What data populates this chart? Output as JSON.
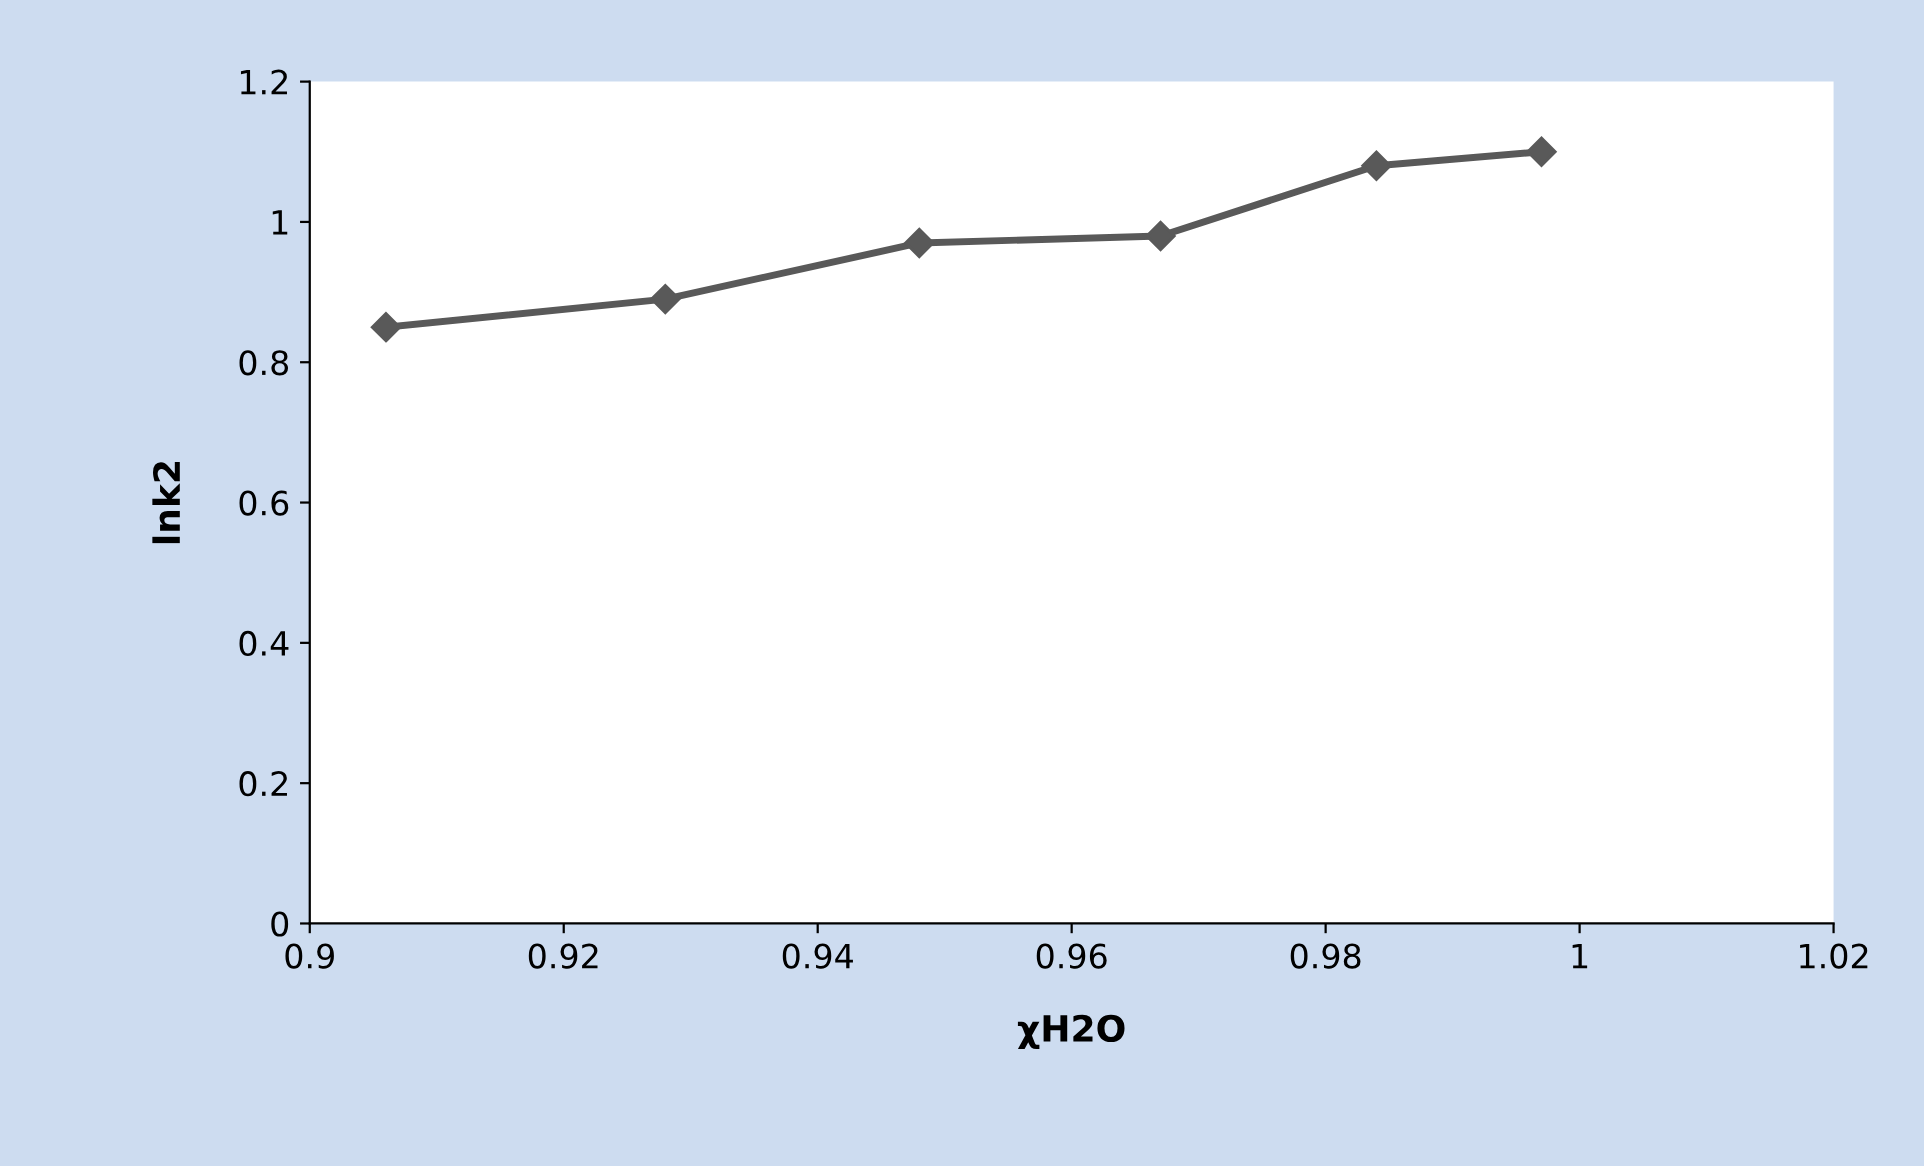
{
  "chart_data": {
    "type": "line",
    "xlabel": "χH2O",
    "ylabel": "lnk2",
    "series": [
      {
        "color": "#595959",
        "x": [
          0.906,
          0.928,
          0.948,
          0.967,
          0.984,
          0.997
        ],
        "values": [
          0.85,
          0.89,
          0.97,
          0.98,
          1.08,
          1.1
        ]
      }
    ],
    "xlim": [
      0.9,
      1.02
    ],
    "xticks": [
      0.9,
      0.92,
      0.94,
      0.96,
      0.98,
      1,
      1.02
    ],
    "ylim": [
      0,
      1.2
    ],
    "yticks": [
      0,
      0.2,
      0.4,
      0.6,
      0.8,
      1,
      1.2
    ],
    "grid": false,
    "legend": false,
    "marker": "diamond",
    "line_style": "solid"
  }
}
